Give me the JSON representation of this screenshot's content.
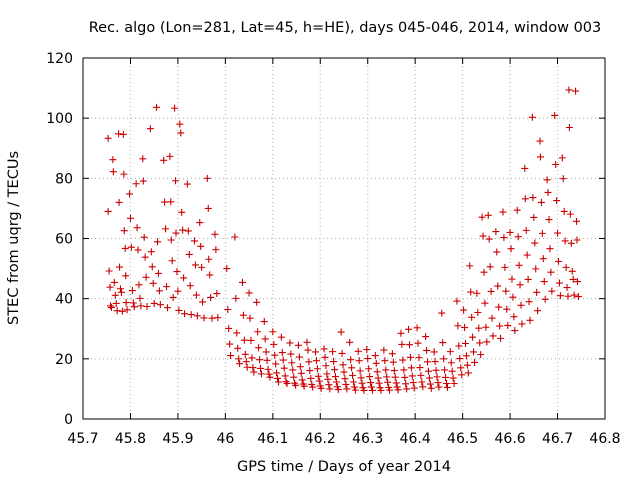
{
  "chart_data": {
    "type": "scatter",
    "title": "Rec. algo (Lon=281, Lat=45, h=HE), days 045-046, 2014, window 003",
    "xlabel": "GPS time / Days of year 2014",
    "ylabel": "STEC from uqrg / TECUs",
    "xlim": [
      45.7,
      46.8
    ],
    "ylim": [
      0,
      120
    ],
    "xticks": [
      "45.7",
      "45.8",
      "45.9",
      "46",
      "46.1",
      "46.2",
      "46.3",
      "46.4",
      "46.5",
      "46.6",
      "46.7",
      "46.8"
    ],
    "yticks": [
      "0",
      "20",
      "40",
      "60",
      "80",
      "100",
      "120"
    ],
    "grid": true,
    "marker": "+",
    "series_color": "#cc0000",
    "points": [
      [
        45.753,
        93.3
      ],
      [
        45.753,
        69.0
      ],
      [
        45.755,
        49.2
      ],
      [
        45.757,
        43.8
      ],
      [
        45.758,
        37.6
      ],
      [
        45.76,
        37.1
      ],
      [
        45.763,
        86.2
      ],
      [
        45.764,
        82.2
      ],
      [
        45.766,
        45.4
      ],
      [
        45.768,
        41.1
      ],
      [
        45.77,
        38.4
      ],
      [
        45.772,
        36.0
      ],
      [
        45.775,
        94.8
      ],
      [
        45.776,
        72.0
      ],
      [
        45.777,
        50.5
      ],
      [
        45.779,
        43.3
      ],
      [
        45.781,
        42.1
      ],
      [
        45.783,
        35.8
      ],
      [
        45.785,
        94.6
      ],
      [
        45.786,
        81.4
      ],
      [
        45.787,
        62.6
      ],
      [
        45.789,
        56.7
      ],
      [
        45.79,
        47.6
      ],
      [
        45.791,
        38.7
      ],
      [
        45.793,
        36.3
      ],
      [
        45.798,
        74.8
      ],
      [
        45.8,
        66.7
      ],
      [
        45.802,
        57.1
      ],
      [
        45.804,
        42.7
      ],
      [
        45.806,
        38.6
      ],
      [
        45.808,
        37.3
      ],
      [
        45.812,
        78.2
      ],
      [
        45.814,
        63.6
      ],
      [
        45.816,
        56.2
      ],
      [
        45.818,
        44.6
      ],
      [
        45.82,
        40.1
      ],
      [
        45.822,
        37.6
      ],
      [
        45.826,
        86.5
      ],
      [
        45.827,
        79.1
      ],
      [
        45.829,
        60.4
      ],
      [
        45.831,
        53.8
      ],
      [
        45.833,
        47.1
      ],
      [
        45.835,
        37.4
      ],
      [
        45.842,
        96.5
      ],
      [
        45.844,
        55.6
      ],
      [
        45.846,
        50.6
      ],
      [
        45.848,
        45.1
      ],
      [
        45.85,
        38.4
      ],
      [
        45.855,
        103.6
      ],
      [
        45.857,
        58.9
      ],
      [
        45.859,
        48.4
      ],
      [
        45.861,
        42.6
      ],
      [
        45.863,
        38.0
      ],
      [
        45.87,
        86.0
      ],
      [
        45.872,
        72.1
      ],
      [
        45.874,
        63.2
      ],
      [
        45.876,
        44.0
      ],
      [
        45.878,
        37.0
      ],
      [
        45.883,
        87.3
      ],
      [
        45.885,
        72.2
      ],
      [
        45.886,
        59.5
      ],
      [
        45.888,
        52.6
      ],
      [
        45.89,
        40.4
      ],
      [
        45.893,
        103.3
      ],
      [
        45.895,
        79.2
      ],
      [
        45.896,
        61.8
      ],
      [
        45.898,
        49.0
      ],
      [
        45.9,
        42.5
      ],
      [
        45.902,
        36.1
      ],
      [
        45.904,
        98.0
      ],
      [
        45.906,
        95.1
      ],
      [
        45.908,
        68.7
      ],
      [
        45.91,
        62.8
      ],
      [
        45.912,
        46.9
      ],
      [
        45.914,
        35.0
      ],
      [
        45.92,
        78.1
      ],
      [
        45.922,
        62.5
      ],
      [
        45.924,
        54.7
      ],
      [
        45.926,
        44.3
      ],
      [
        45.928,
        34.7
      ],
      [
        45.935,
        59.2
      ],
      [
        45.937,
        51.2
      ],
      [
        45.939,
        41.2
      ],
      [
        45.941,
        34.3
      ],
      [
        45.946,
        65.3
      ],
      [
        45.948,
        57.4
      ],
      [
        45.95,
        50.4
      ],
      [
        45.952,
        38.9
      ],
      [
        45.955,
        33.6
      ],
      [
        45.962,
        80.0
      ],
      [
        45.964,
        70.0
      ],
      [
        45.965,
        53.1
      ],
      [
        45.967,
        47.9
      ],
      [
        45.969,
        40.4
      ],
      [
        45.972,
        33.5
      ],
      [
        45.978,
        61.4
      ],
      [
        45.98,
        56.3
      ],
      [
        45.982,
        41.7
      ],
      [
        45.984,
        33.7
      ],
      [
        46.003,
        50.0
      ],
      [
        46.005,
        36.4
      ],
      [
        46.007,
        30.1
      ],
      [
        46.009,
        24.9
      ],
      [
        46.011,
        21.1
      ],
      [
        46.02,
        60.5
      ],
      [
        46.022,
        40.1
      ],
      [
        46.024,
        28.6
      ],
      [
        46.026,
        23.5
      ],
      [
        46.028,
        20.0
      ],
      [
        46.03,
        18.4
      ],
      [
        46.036,
        45.4
      ],
      [
        46.038,
        34.5
      ],
      [
        46.04,
        26.2
      ],
      [
        46.042,
        21.5
      ],
      [
        46.044,
        19.1
      ],
      [
        46.046,
        17.2
      ],
      [
        46.05,
        41.9
      ],
      [
        46.052,
        33.5
      ],
      [
        46.054,
        26.1
      ],
      [
        46.056,
        20.3
      ],
      [
        46.058,
        17.1
      ],
      [
        46.06,
        15.6
      ],
      [
        46.066,
        38.8
      ],
      [
        46.068,
        29.0
      ],
      [
        46.07,
        23.7
      ],
      [
        46.072,
        19.7
      ],
      [
        46.074,
        16.8
      ],
      [
        46.076,
        15.0
      ],
      [
        46.082,
        32.4
      ],
      [
        46.084,
        26.6
      ],
      [
        46.086,
        22.3
      ],
      [
        46.088,
        19.5
      ],
      [
        46.09,
        16.5
      ],
      [
        46.092,
        14.9
      ],
      [
        46.094,
        13.9
      ],
      [
        46.1,
        29.0
      ],
      [
        46.102,
        24.8
      ],
      [
        46.104,
        21.2
      ],
      [
        46.106,
        18.3
      ],
      [
        46.108,
        15.3
      ],
      [
        46.11,
        13.5
      ],
      [
        46.112,
        12.3
      ],
      [
        46.118,
        27.2
      ],
      [
        46.12,
        22.1
      ],
      [
        46.122,
        19.6
      ],
      [
        46.124,
        16.9
      ],
      [
        46.126,
        14.3
      ],
      [
        46.128,
        12.4
      ],
      [
        46.13,
        11.8
      ],
      [
        46.136,
        25.3
      ],
      [
        46.138,
        21.6
      ],
      [
        46.14,
        18.7
      ],
      [
        46.142,
        16.3
      ],
      [
        46.144,
        13.9
      ],
      [
        46.146,
        11.9
      ],
      [
        46.148,
        11.2
      ],
      [
        46.154,
        24.5
      ],
      [
        46.156,
        20.6
      ],
      [
        46.158,
        17.4
      ],
      [
        46.16,
        15.2
      ],
      [
        46.162,
        13.0
      ],
      [
        46.164,
        11.6
      ],
      [
        46.166,
        10.9
      ],
      [
        46.172,
        25.5
      ],
      [
        46.174,
        22.9
      ],
      [
        46.176,
        19.0
      ],
      [
        46.178,
        16.1
      ],
      [
        46.18,
        13.5
      ],
      [
        46.182,
        11.5
      ],
      [
        46.184,
        10.6
      ],
      [
        46.19,
        22.3
      ],
      [
        46.192,
        19.4
      ],
      [
        46.194,
        16.7
      ],
      [
        46.196,
        14.2
      ],
      [
        46.198,
        12.6
      ],
      [
        46.2,
        11.0
      ],
      [
        46.202,
        10.2
      ],
      [
        46.208,
        23.3
      ],
      [
        46.21,
        20.5
      ],
      [
        46.212,
        17.7
      ],
      [
        46.214,
        15.0
      ],
      [
        46.216,
        13.2
      ],
      [
        46.218,
        11.4
      ],
      [
        46.22,
        10.0
      ],
      [
        46.226,
        22.4
      ],
      [
        46.228,
        19.1
      ],
      [
        46.23,
        16.4
      ],
      [
        46.232,
        14.1
      ],
      [
        46.234,
        12.3
      ],
      [
        46.236,
        10.7
      ],
      [
        46.238,
        9.8
      ],
      [
        46.244,
        28.9
      ],
      [
        46.246,
        21.8
      ],
      [
        46.248,
        18.0
      ],
      [
        46.25,
        15.6
      ],
      [
        46.252,
        13.4
      ],
      [
        46.254,
        11.5
      ],
      [
        46.256,
        10.0
      ],
      [
        46.262,
        25.5
      ],
      [
        46.264,
        19.7
      ],
      [
        46.266,
        17.0
      ],
      [
        46.268,
        14.5
      ],
      [
        46.27,
        12.3
      ],
      [
        46.272,
        10.6
      ],
      [
        46.274,
        9.6
      ],
      [
        46.28,
        22.5
      ],
      [
        46.282,
        19.4
      ],
      [
        46.284,
        16.0
      ],
      [
        46.286,
        13.7
      ],
      [
        46.288,
        11.9
      ],
      [
        46.29,
        10.4
      ],
      [
        46.292,
        9.5
      ],
      [
        46.298,
        23.1
      ],
      [
        46.3,
        20.1
      ],
      [
        46.302,
        16.7
      ],
      [
        46.304,
        14.1
      ],
      [
        46.306,
        12.1
      ],
      [
        46.308,
        10.6
      ],
      [
        46.31,
        9.5
      ],
      [
        46.316,
        21.1
      ],
      [
        46.318,
        18.5
      ],
      [
        46.32,
        15.7
      ],
      [
        46.322,
        13.6
      ],
      [
        46.324,
        11.9
      ],
      [
        46.326,
        10.4
      ],
      [
        46.328,
        9.5
      ],
      [
        46.334,
        22.9
      ],
      [
        46.336,
        19.4
      ],
      [
        46.338,
        16.3
      ],
      [
        46.34,
        14.0
      ],
      [
        46.342,
        12.2
      ],
      [
        46.344,
        10.5
      ],
      [
        46.346,
        9.6
      ],
      [
        46.352,
        21.7
      ],
      [
        46.354,
        18.9
      ],
      [
        46.356,
        16.1
      ],
      [
        46.358,
        13.9
      ],
      [
        46.36,
        12.0
      ],
      [
        46.362,
        10.6
      ],
      [
        46.364,
        9.7
      ],
      [
        46.37,
        28.5
      ],
      [
        46.372,
        24.8
      ],
      [
        46.374,
        19.6
      ],
      [
        46.376,
        16.3
      ],
      [
        46.378,
        13.8
      ],
      [
        46.38,
        11.7
      ],
      [
        46.382,
        10.0
      ],
      [
        46.386,
        29.8
      ],
      [
        46.388,
        24.7
      ],
      [
        46.39,
        20.5
      ],
      [
        46.392,
        17.0
      ],
      [
        46.394,
        14.3
      ],
      [
        46.396,
        12.1
      ],
      [
        46.398,
        10.3
      ],
      [
        46.404,
        30.3
      ],
      [
        46.406,
        25.2
      ],
      [
        46.408,
        20.4
      ],
      [
        46.41,
        17.1
      ],
      [
        46.412,
        14.5
      ],
      [
        46.414,
        12.3
      ],
      [
        46.416,
        10.7
      ],
      [
        46.422,
        27.4
      ],
      [
        46.424,
        22.8
      ],
      [
        46.426,
        19.0
      ],
      [
        46.428,
        15.9
      ],
      [
        46.43,
        13.6
      ],
      [
        46.432,
        11.6
      ],
      [
        46.434,
        10.2
      ],
      [
        46.44,
        22.3
      ],
      [
        46.442,
        19.1
      ],
      [
        46.444,
        16.2
      ],
      [
        46.446,
        14.0
      ],
      [
        46.448,
        12.1
      ],
      [
        46.45,
        10.6
      ],
      [
        46.456,
        35.2
      ],
      [
        46.458,
        25.4
      ],
      [
        46.46,
        20.0
      ],
      [
        46.462,
        16.3
      ],
      [
        46.464,
        13.8
      ],
      [
        46.466,
        11.8
      ],
      [
        46.468,
        10.5
      ],
      [
        46.474,
        22.4
      ],
      [
        46.476,
        18.7
      ],
      [
        46.478,
        15.9
      ],
      [
        46.48,
        13.6
      ],
      [
        46.482,
        11.8
      ],
      [
        46.488,
        39.2
      ],
      [
        46.49,
        31.0
      ],
      [
        46.492,
        24.3
      ],
      [
        46.494,
        20.1
      ],
      [
        46.496,
        17.0
      ],
      [
        46.498,
        14.7
      ],
      [
        46.502,
        36.2
      ],
      [
        46.504,
        30.4
      ],
      [
        46.506,
        25.1
      ],
      [
        46.508,
        21.0
      ],
      [
        46.51,
        17.9
      ],
      [
        46.512,
        15.3
      ],
      [
        46.515,
        50.9
      ],
      [
        46.517,
        42.2
      ],
      [
        46.519,
        33.8
      ],
      [
        46.521,
        27.2
      ],
      [
        46.523,
        22.3
      ],
      [
        46.525,
        18.8
      ],
      [
        46.53,
        41.8
      ],
      [
        46.532,
        35.4
      ],
      [
        46.534,
        30.2
      ],
      [
        46.536,
        25.3
      ],
      [
        46.538,
        21.4
      ],
      [
        46.541,
        67.1
      ],
      [
        46.543,
        60.8
      ],
      [
        46.545,
        48.8
      ],
      [
        46.547,
        38.5
      ],
      [
        46.549,
        30.5
      ],
      [
        46.551,
        25.6
      ],
      [
        46.554,
        67.7
      ],
      [
        46.556,
        59.8
      ],
      [
        46.558,
        50.6
      ],
      [
        46.56,
        42.4
      ],
      [
        46.562,
        33.5
      ],
      [
        46.564,
        27.6
      ],
      [
        46.57,
        62.3
      ],
      [
        46.572,
        55.5
      ],
      [
        46.574,
        44.2
      ],
      [
        46.576,
        37.2
      ],
      [
        46.578,
        30.9
      ],
      [
        46.58,
        26.8
      ],
      [
        46.585,
        68.8
      ],
      [
        46.587,
        60.3
      ],
      [
        46.589,
        50.4
      ],
      [
        46.591,
        42.5
      ],
      [
        46.593,
        36.5
      ],
      [
        46.595,
        31.1
      ],
      [
        46.6,
        62.0
      ],
      [
        46.602,
        56.6
      ],
      [
        46.604,
        46.5
      ],
      [
        46.606,
        40.5
      ],
      [
        46.608,
        34.0
      ],
      [
        46.61,
        29.4
      ],
      [
        46.615,
        69.4
      ],
      [
        46.617,
        60.6
      ],
      [
        46.619,
        51.1
      ],
      [
        46.621,
        44.6
      ],
      [
        46.623,
        37.8
      ],
      [
        46.625,
        31.6
      ],
      [
        46.631,
        83.3
      ],
      [
        46.632,
        73.2
      ],
      [
        46.634,
        62.7
      ],
      [
        46.636,
        54.5
      ],
      [
        46.638,
        46.4
      ],
      [
        46.64,
        39.0
      ],
      [
        46.642,
        32.8
      ],
      [
        46.647,
        100.3
      ],
      [
        46.648,
        73.6
      ],
      [
        46.65,
        67.0
      ],
      [
        46.652,
        58.5
      ],
      [
        46.654,
        49.9
      ],
      [
        46.656,
        42.1
      ],
      [
        46.658,
        36.0
      ],
      [
        46.663,
        92.4
      ],
      [
        46.664,
        87.1
      ],
      [
        46.666,
        72.0
      ],
      [
        46.668,
        61.7
      ],
      [
        46.67,
        53.3
      ],
      [
        46.672,
        45.7
      ],
      [
        46.674,
        39.8
      ],
      [
        46.678,
        79.5
      ],
      [
        46.68,
        75.3
      ],
      [
        46.682,
        66.3
      ],
      [
        46.684,
        56.6
      ],
      [
        46.686,
        48.8
      ],
      [
        46.688,
        42.5
      ],
      [
        46.694,
        100.9
      ],
      [
        46.696,
        84.6
      ],
      [
        46.698,
        72.6
      ],
      [
        46.7,
        61.8
      ],
      [
        46.702,
        52.4
      ],
      [
        46.704,
        45.2
      ],
      [
        46.706,
        41.0
      ],
      [
        46.71,
        86.8
      ],
      [
        46.712,
        79.9
      ],
      [
        46.714,
        69.0
      ],
      [
        46.716,
        59.2
      ],
      [
        46.718,
        50.4
      ],
      [
        46.72,
        43.7
      ],
      [
        46.722,
        40.8
      ],
      [
        46.724,
        109.4
      ],
      [
        46.725,
        96.9
      ],
      [
        46.727,
        68.1
      ],
      [
        46.729,
        58.4
      ],
      [
        46.731,
        49.1
      ],
      [
        46.733,
        46.4
      ],
      [
        46.735,
        41.2
      ],
      [
        46.738,
        109.0
      ],
      [
        46.74,
        65.7
      ],
      [
        46.741,
        59.5
      ],
      [
        46.742,
        45.7
      ],
      [
        46.744,
        40.7
      ]
    ]
  }
}
